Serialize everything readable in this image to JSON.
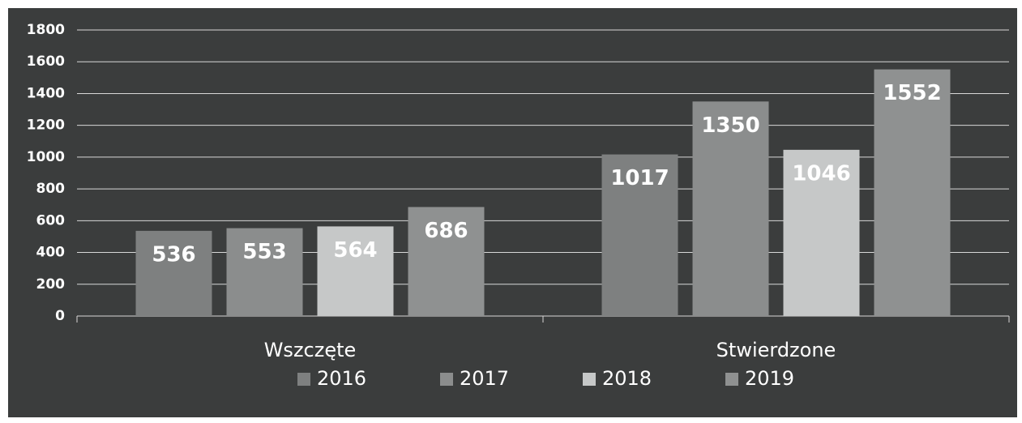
{
  "chart_data": {
    "type": "bar",
    "categories": [
      "Wszczęte",
      "Stwierdzone"
    ],
    "series": [
      {
        "name": "2016",
        "color": "#7e8080",
        "values": [
          536,
          1017
        ]
      },
      {
        "name": "2017",
        "color": "#8b8d8d",
        "values": [
          553,
          1350
        ]
      },
      {
        "name": "2018",
        "color": "#c6c8c8",
        "values": [
          564,
          1046
        ]
      },
      {
        "name": "2019",
        "color": "#8f9191",
        "values": [
          686,
          1552
        ]
      }
    ],
    "ylim": [
      0,
      1800
    ],
    "yticks": [
      0,
      200,
      400,
      600,
      800,
      1000,
      1200,
      1400,
      1600,
      1800
    ],
    "grid": true,
    "legend": "bottom"
  }
}
